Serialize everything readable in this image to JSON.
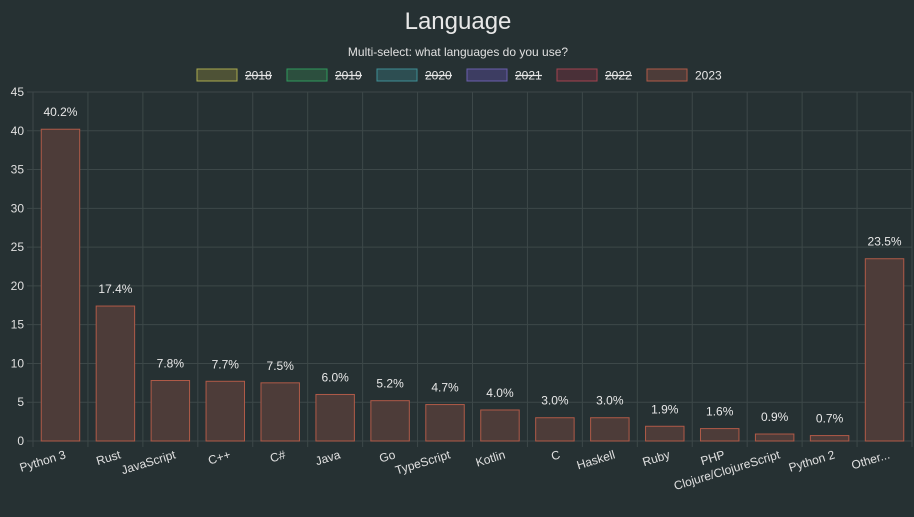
{
  "chart_data": {
    "type": "bar",
    "title": "Language",
    "subtitle": "Multi-select: what languages do you use?",
    "categories": [
      "Python 3",
      "Rust",
      "JavaScript",
      "C++",
      "C#",
      "Java",
      "Go",
      "TypeScript",
      "Kotlin",
      "C",
      "Haskell",
      "Ruby",
      "PHP",
      "Clojure/ClojureScript",
      "Python 2",
      "Other..."
    ],
    "series": [
      {
        "name": "2018",
        "hidden": true,
        "fill": "#4e5236",
        "stroke": "#a9ab4f"
      },
      {
        "name": "2019",
        "hidden": true,
        "fill": "#2c4f3e",
        "stroke": "#2f9a5c"
      },
      {
        "name": "2020",
        "hidden": true,
        "fill": "#2d4e52",
        "stroke": "#3f8f95"
      },
      {
        "name": "2021",
        "hidden": true,
        "fill": "#3d3d62",
        "stroke": "#6a5fae"
      },
      {
        "name": "2022",
        "hidden": true,
        "fill": "#4a3038",
        "stroke": "#a2434f"
      },
      {
        "name": "2023",
        "hidden": false,
        "fill": "#4d3c39",
        "stroke": "#b05a48",
        "values": [
          40.2,
          17.4,
          7.8,
          7.7,
          7.5,
          6.0,
          5.2,
          4.7,
          4.0,
          3.0,
          3.0,
          1.9,
          1.6,
          0.9,
          0.7,
          23.5
        ],
        "labels": [
          "40.2%",
          "17.4%",
          "7.8%",
          "7.7%",
          "7.5%",
          "6.0%",
          "5.2%",
          "4.7%",
          "4.0%",
          "3.0%",
          "3.0%",
          "1.9%",
          "1.6%",
          "0.9%",
          "0.7%",
          "23.5%"
        ]
      }
    ],
    "ylim": [
      0,
      45
    ],
    "yticks": [
      0,
      5,
      10,
      15,
      20,
      25,
      30,
      35,
      40,
      45
    ],
    "grid": true,
    "legend": "top-center"
  }
}
